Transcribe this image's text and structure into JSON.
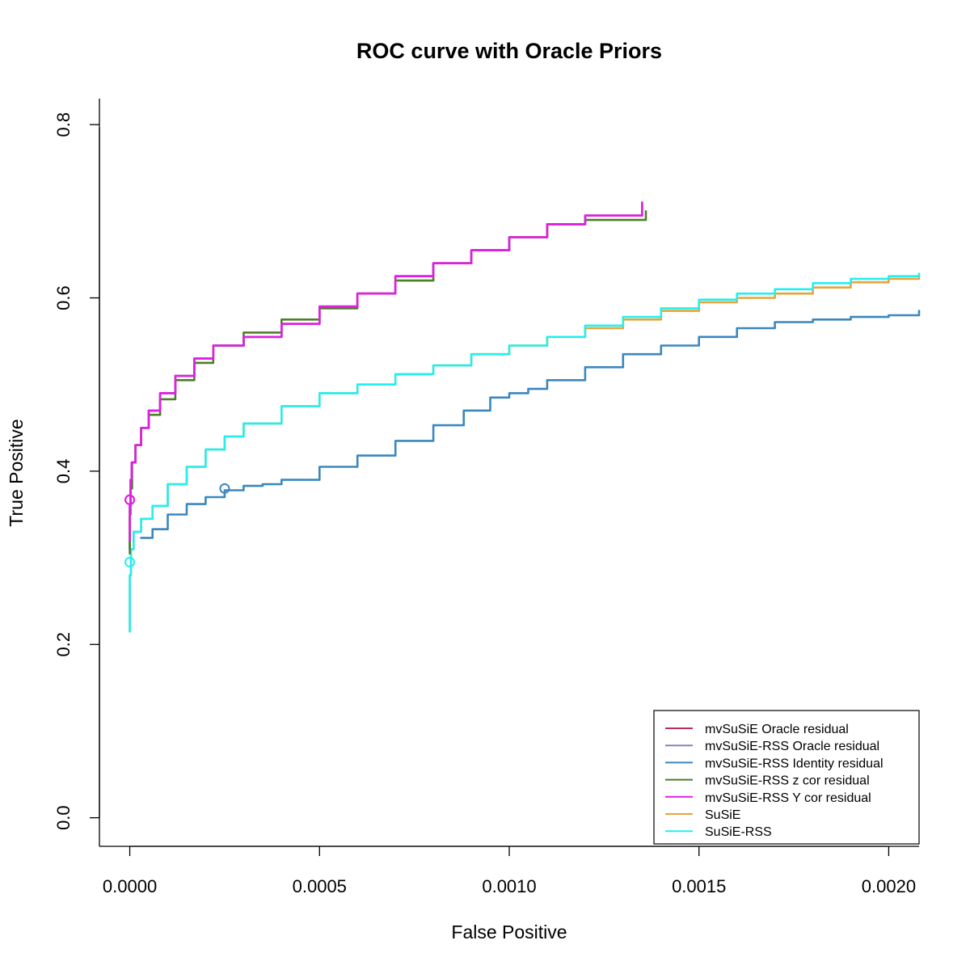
{
  "chart_data": {
    "type": "line",
    "title": "ROC curve with Oracle Priors",
    "xlabel": "False Positive",
    "ylabel": "True Positive",
    "xlim": [
      -8e-05,
      0.00208
    ],
    "ylim": [
      -0.033,
      0.83
    ],
    "x_ticks": [
      {
        "value": 0,
        "label": "0.0000"
      },
      {
        "value": 0.0005,
        "label": "0.0005"
      },
      {
        "value": 0.001,
        "label": "0.0010"
      },
      {
        "value": 0.0015,
        "label": "0.0015"
      },
      {
        "value": 0.002,
        "label": "0.0020"
      }
    ],
    "y_ticks": [
      {
        "value": 0,
        "label": "0.0"
      },
      {
        "value": 0.2,
        "label": "0.2"
      },
      {
        "value": 0.4,
        "label": "0.4"
      },
      {
        "value": 0.6,
        "label": "0.6"
      },
      {
        "value": 0.8,
        "label": "0.8"
      }
    ],
    "grid": false,
    "legend_position": "bottom-right",
    "series": [
      {
        "name": "mvSuSiE Oracle residual",
        "color": "#B5305E",
        "points": [
          [
            0,
            0.31
          ],
          [
            0,
            0.36
          ],
          [
            2e-06,
            0.39
          ],
          [
            5e-06,
            0.41
          ],
          [
            1.5e-05,
            0.43
          ],
          [
            3e-05,
            0.45
          ],
          [
            5e-05,
            0.47
          ],
          [
            8e-05,
            0.49
          ],
          [
            0.00012,
            0.51
          ],
          [
            0.00017,
            0.53
          ],
          [
            0.00022,
            0.545
          ],
          [
            0.0003,
            0.555
          ],
          [
            0.0004,
            0.57
          ],
          [
            0.0005,
            0.59
          ],
          [
            0.0006,
            0.605
          ],
          [
            0.0007,
            0.625
          ],
          [
            0.0008,
            0.64
          ],
          [
            0.0009,
            0.655
          ],
          [
            0.001,
            0.67
          ],
          [
            0.0011,
            0.685
          ],
          [
            0.0012,
            0.695
          ],
          [
            0.00135,
            0.71
          ]
        ],
        "marker": [
          0,
          0.367
        ]
      },
      {
        "name": "mvSuSiE-RSS Oracle residual",
        "color": "#8B80C0",
        "points": [
          [
            0,
            0.31
          ],
          [
            0,
            0.36
          ],
          [
            2e-06,
            0.39
          ],
          [
            5e-06,
            0.41
          ],
          [
            1.5e-05,
            0.43
          ],
          [
            3e-05,
            0.45
          ],
          [
            5e-05,
            0.47
          ],
          [
            8e-05,
            0.49
          ],
          [
            0.00012,
            0.51
          ],
          [
            0.00017,
            0.53
          ],
          [
            0.00022,
            0.545
          ],
          [
            0.0003,
            0.555
          ],
          [
            0.0004,
            0.57
          ],
          [
            0.0005,
            0.59
          ],
          [
            0.0006,
            0.605
          ],
          [
            0.0007,
            0.625
          ],
          [
            0.0008,
            0.64
          ],
          [
            0.0009,
            0.655
          ],
          [
            0.001,
            0.67
          ],
          [
            0.0011,
            0.685
          ],
          [
            0.0012,
            0.695
          ],
          [
            0.00135,
            0.71
          ]
        ]
      },
      {
        "name": "mvSuSiE-RSS Identity residual",
        "color": "#3A87BE",
        "points": [
          [
            3e-05,
            0.323
          ],
          [
            6e-05,
            0.333
          ],
          [
            0.0001,
            0.35
          ],
          [
            0.00015,
            0.362
          ],
          [
            0.0002,
            0.37
          ],
          [
            0.00025,
            0.378
          ],
          [
            0.0003,
            0.383
          ],
          [
            0.00035,
            0.385
          ],
          [
            0.0004,
            0.39
          ],
          [
            0.0005,
            0.405
          ],
          [
            0.0006,
            0.418
          ],
          [
            0.0007,
            0.435
          ],
          [
            0.0008,
            0.453
          ],
          [
            0.00088,
            0.47
          ],
          [
            0.00095,
            0.485
          ],
          [
            0.001,
            0.49
          ],
          [
            0.00105,
            0.495
          ],
          [
            0.0011,
            0.505
          ],
          [
            0.0012,
            0.52
          ],
          [
            0.0013,
            0.535
          ],
          [
            0.0014,
            0.545
          ],
          [
            0.0015,
            0.555
          ],
          [
            0.0016,
            0.565
          ],
          [
            0.0017,
            0.572
          ],
          [
            0.0018,
            0.575
          ],
          [
            0.0019,
            0.578
          ],
          [
            0.002,
            0.58
          ],
          [
            0.00208,
            0.585
          ]
        ],
        "marker": [
          0.00025,
          0.38
        ]
      },
      {
        "name": "mvSuSiE-RSS z cor residual",
        "color": "#4E7E28",
        "points": [
          [
            0,
            0.305
          ],
          [
            0,
            0.35
          ],
          [
            2e-06,
            0.38
          ],
          [
            6e-06,
            0.41
          ],
          [
            1.5e-05,
            0.43
          ],
          [
            3e-05,
            0.45
          ],
          [
            5e-05,
            0.465
          ],
          [
            8e-05,
            0.483
          ],
          [
            0.00012,
            0.505
          ],
          [
            0.00017,
            0.525
          ],
          [
            0.00022,
            0.545
          ],
          [
            0.0003,
            0.56
          ],
          [
            0.0004,
            0.575
          ],
          [
            0.0005,
            0.588
          ],
          [
            0.0006,
            0.605
          ],
          [
            0.0007,
            0.62
          ],
          [
            0.0008,
            0.64
          ],
          [
            0.0009,
            0.655
          ],
          [
            0.001,
            0.67
          ],
          [
            0.0011,
            0.685
          ],
          [
            0.0012,
            0.69
          ],
          [
            0.00136,
            0.7
          ]
        ]
      },
      {
        "name": "mvSuSiE-RSS Y cor residual",
        "color": "#E21EE6",
        "points": [
          [
            0,
            0.32
          ],
          [
            0,
            0.36
          ],
          [
            2e-06,
            0.39
          ],
          [
            5e-06,
            0.41
          ],
          [
            1.5e-05,
            0.43
          ],
          [
            3e-05,
            0.45
          ],
          [
            5e-05,
            0.47
          ],
          [
            8e-05,
            0.49
          ],
          [
            0.00012,
            0.51
          ],
          [
            0.00017,
            0.53
          ],
          [
            0.00022,
            0.545
          ],
          [
            0.0003,
            0.555
          ],
          [
            0.0004,
            0.57
          ],
          [
            0.0005,
            0.59
          ],
          [
            0.0006,
            0.605
          ],
          [
            0.0007,
            0.625
          ],
          [
            0.0008,
            0.64
          ],
          [
            0.0009,
            0.655
          ],
          [
            0.001,
            0.67
          ],
          [
            0.0011,
            0.685
          ],
          [
            0.0012,
            0.695
          ],
          [
            0.00135,
            0.71
          ]
        ],
        "marker": [
          0,
          0.367
        ]
      },
      {
        "name": "SuSiE",
        "color": "#E8A33A",
        "points": [
          [
            0,
            0.215
          ],
          [
            0,
            0.28
          ],
          [
            3e-06,
            0.31
          ],
          [
            1e-05,
            0.33
          ],
          [
            3e-05,
            0.345
          ],
          [
            6e-05,
            0.36
          ],
          [
            0.0001,
            0.385
          ],
          [
            0.00015,
            0.405
          ],
          [
            0.0002,
            0.425
          ],
          [
            0.00025,
            0.44
          ],
          [
            0.0003,
            0.455
          ],
          [
            0.0004,
            0.475
          ],
          [
            0.0005,
            0.49
          ],
          [
            0.0006,
            0.5
          ],
          [
            0.0007,
            0.512
          ],
          [
            0.0008,
            0.522
          ],
          [
            0.0009,
            0.535
          ],
          [
            0.001,
            0.545
          ],
          [
            0.0011,
            0.555
          ],
          [
            0.0012,
            0.565
          ],
          [
            0.0013,
            0.575
          ],
          [
            0.0014,
            0.585
          ],
          [
            0.0015,
            0.595
          ],
          [
            0.0016,
            0.6
          ],
          [
            0.0017,
            0.605
          ],
          [
            0.0018,
            0.612
          ],
          [
            0.0019,
            0.618
          ],
          [
            0.002,
            0.622
          ],
          [
            0.00208,
            0.626
          ]
        ]
      },
      {
        "name": "SuSiE-RSS",
        "color": "#22F0F0",
        "points": [
          [
            0,
            0.215
          ],
          [
            0,
            0.28
          ],
          [
            3e-06,
            0.31
          ],
          [
            1e-05,
            0.33
          ],
          [
            3e-05,
            0.345
          ],
          [
            6e-05,
            0.36
          ],
          [
            0.0001,
            0.385
          ],
          [
            0.00015,
            0.405
          ],
          [
            0.0002,
            0.425
          ],
          [
            0.00025,
            0.44
          ],
          [
            0.0003,
            0.455
          ],
          [
            0.0004,
            0.475
          ],
          [
            0.0005,
            0.49
          ],
          [
            0.0006,
            0.5
          ],
          [
            0.0007,
            0.512
          ],
          [
            0.0008,
            0.522
          ],
          [
            0.0009,
            0.535
          ],
          [
            0.001,
            0.545
          ],
          [
            0.0011,
            0.555
          ],
          [
            0.0012,
            0.568
          ],
          [
            0.0013,
            0.578
          ],
          [
            0.0014,
            0.588
          ],
          [
            0.0015,
            0.598
          ],
          [
            0.0016,
            0.605
          ],
          [
            0.0017,
            0.61
          ],
          [
            0.0018,
            0.617
          ],
          [
            0.0019,
            0.622
          ],
          [
            0.002,
            0.625
          ],
          [
            0.00208,
            0.628
          ]
        ],
        "marker": [
          0,
          0.295
        ]
      }
    ]
  }
}
